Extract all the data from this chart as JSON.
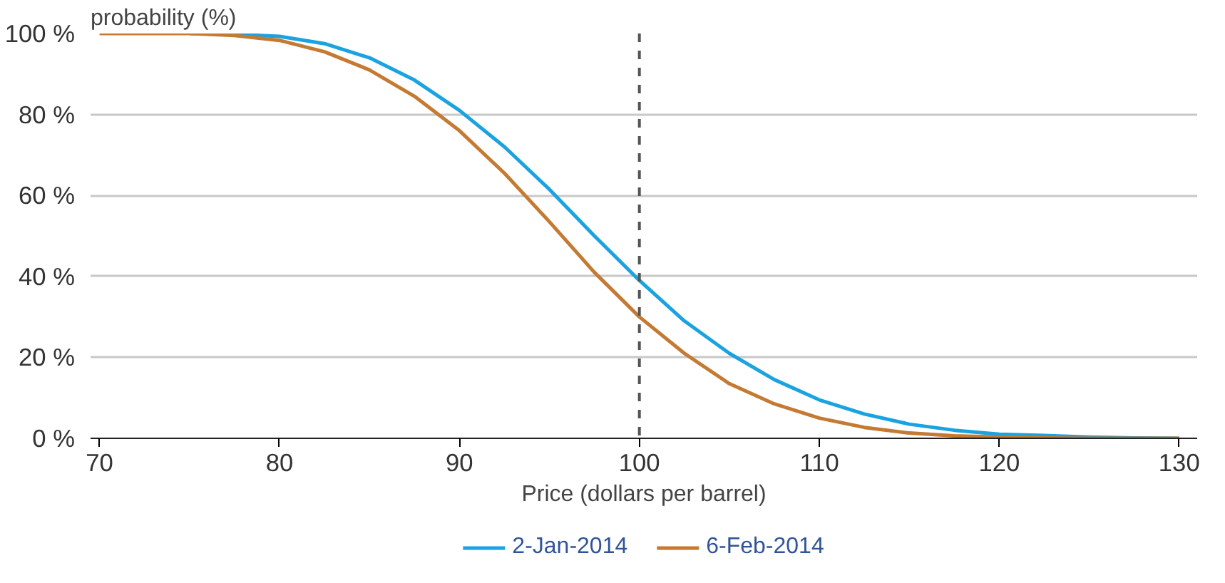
{
  "chart_data": {
    "type": "line",
    "ylabel": "probability (%)",
    "xlabel": "Price (dollars per barrel)",
    "x": [
      70,
      72.5,
      75,
      77.5,
      80,
      82.5,
      85,
      87.5,
      90,
      92.5,
      95,
      97.5,
      100,
      102.5,
      105,
      107.5,
      110,
      112.5,
      115,
      117.5,
      120,
      122.5,
      125,
      127.5,
      130
    ],
    "series": [
      {
        "name": "2-Jan-2014",
        "color": "#1aa3e0",
        "values": [
          null,
          null,
          100,
          99.8,
          99.3,
          97.5,
          94,
          88.5,
          81,
          72,
          61.5,
          50,
          39,
          29,
          21,
          14.5,
          9.5,
          6,
          3.5,
          2,
          1,
          0.7,
          0.3,
          0.1,
          0
        ]
      },
      {
        "name": "6-Feb-2014",
        "color": "#c47a32",
        "values": [
          100,
          100,
          100,
          99.5,
          98.3,
          95.5,
          91,
          84.5,
          76,
          65.5,
          53.5,
          41,
          30,
          21,
          13.5,
          8.5,
          5,
          2.7,
          1.3,
          0.6,
          0.3,
          0.1,
          0,
          0,
          0
        ]
      }
    ],
    "xlim": [
      69.5,
      131
    ],
    "xticks": [
      70,
      80,
      90,
      100,
      110,
      120,
      130
    ],
    "ylim": [
      0,
      100
    ],
    "yticks": [
      {
        "value": 0,
        "label": "0 %"
      },
      {
        "value": 20,
        "label": "20 %"
      },
      {
        "value": 40,
        "label": "40 %"
      },
      {
        "value": 60,
        "label": "60 %"
      },
      {
        "value": 80,
        "label": "80 %"
      },
      {
        "value": 100,
        "label": "100 %"
      }
    ],
    "ref_lines": [
      {
        "axis": "x",
        "value": 100,
        "color": "#555555",
        "line_style": "dashed"
      }
    ],
    "grid": "y",
    "legend": "bottom",
    "marker": "none",
    "line_style": "solid"
  }
}
